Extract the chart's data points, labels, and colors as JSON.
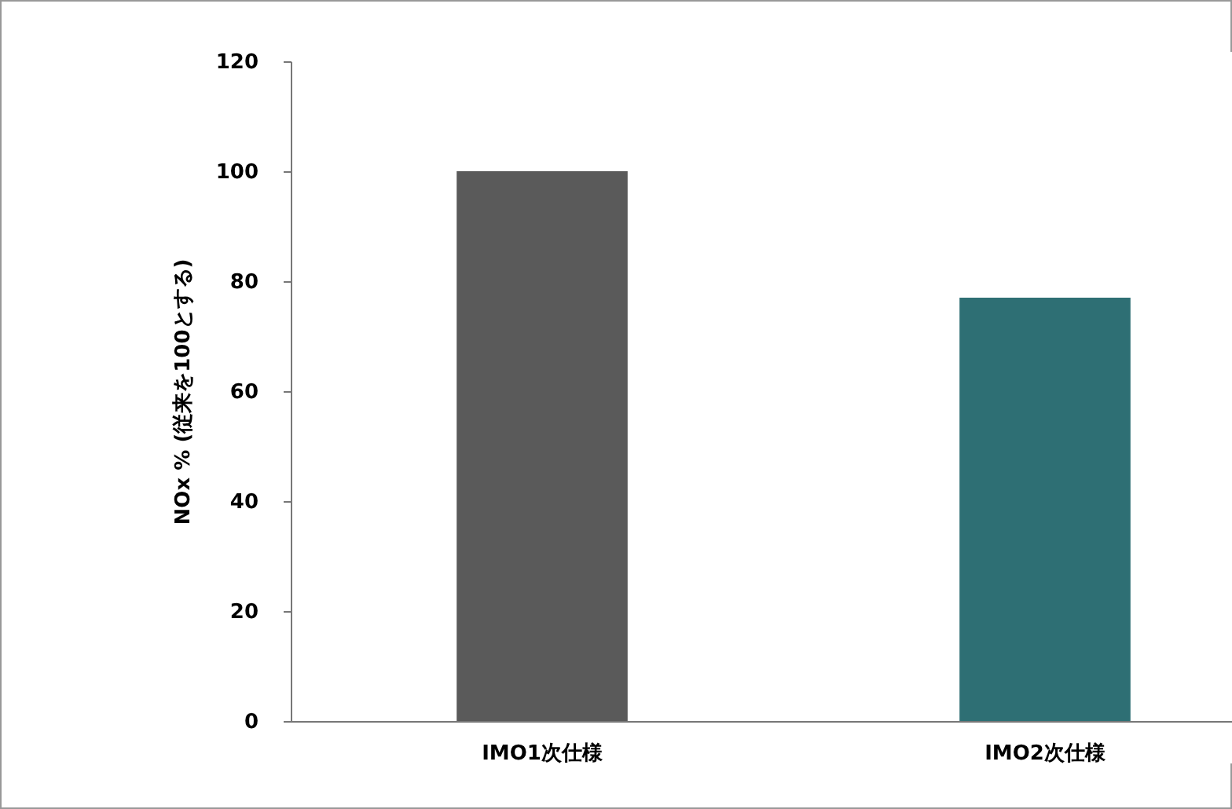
{
  "chart_data": {
    "type": "bar",
    "ylabel": "NOx % (従来を100とする)",
    "categories": [
      "IMO1次仕様",
      "IMO2次仕様"
    ],
    "values": [
      100,
      77
    ],
    "colors": [
      "#5a5a5a",
      "#2e6f74"
    ],
    "ylim": [
      0,
      120
    ],
    "yticks": [
      0,
      20,
      40,
      60,
      80,
      100,
      120
    ],
    "grid": false,
    "legend": false
  }
}
